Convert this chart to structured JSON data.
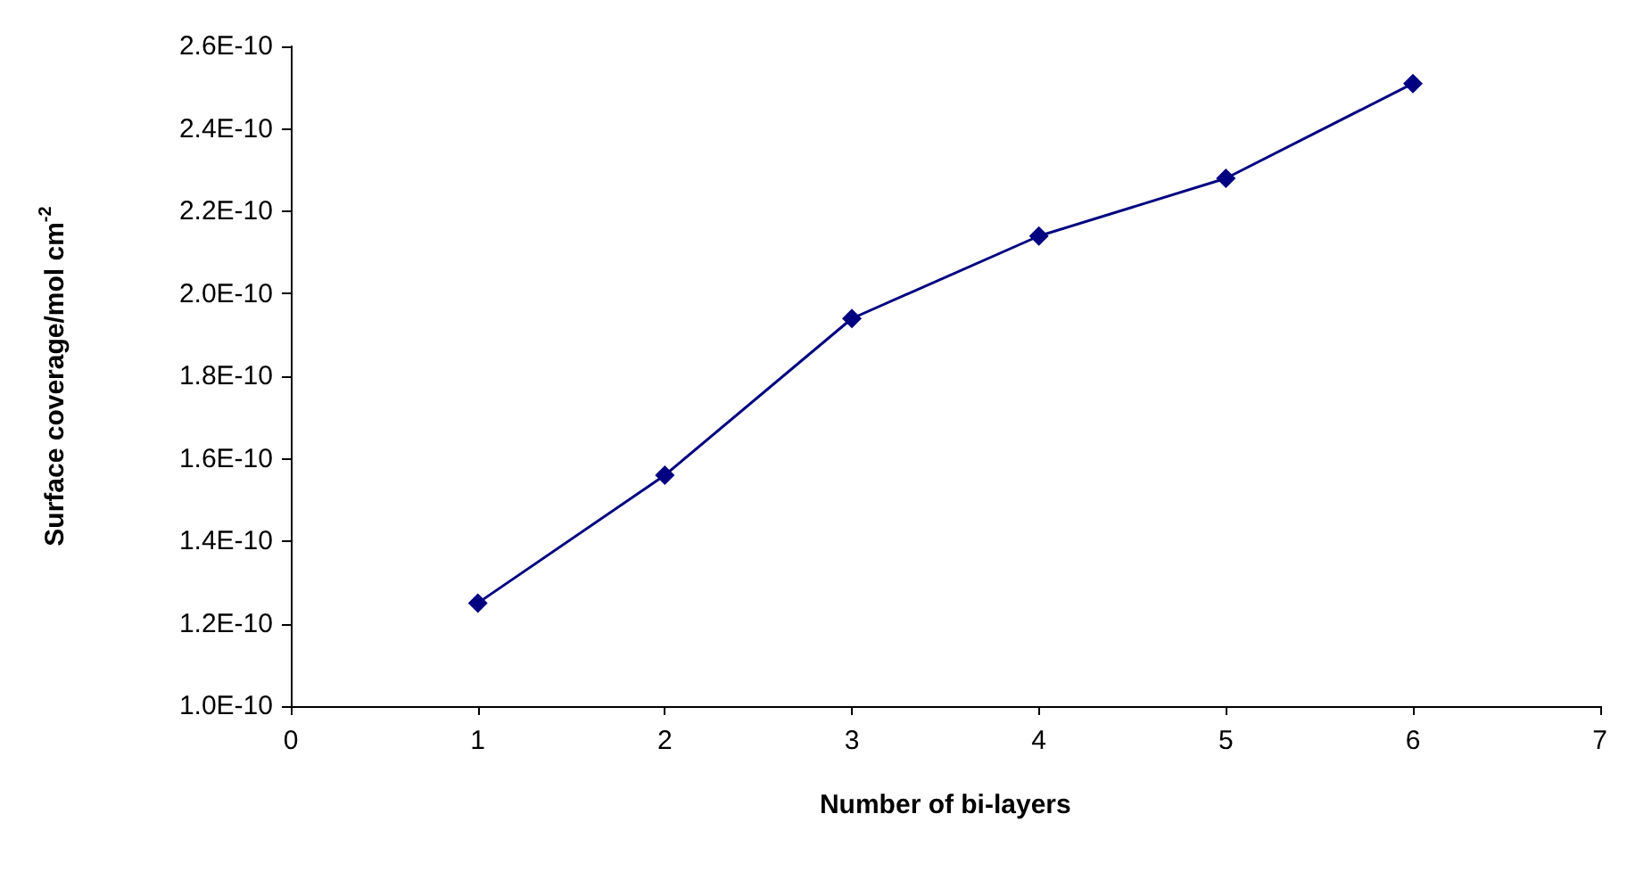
{
  "chart_data": {
    "type": "line",
    "xlabel": "Number of bi-layers",
    "ylabel": "Surface coverage/mol cm$^{-2}$",
    "x": [
      1,
      2,
      3,
      4,
      5,
      6
    ],
    "series": [
      {
        "color": "#000080",
        "values": [
          1.25e-10,
          1.56e-10,
          1.94e-10,
          2.14e-10,
          2.28e-10,
          2.51e-10
        ]
      }
    ],
    "xlim": [
      0,
      7
    ],
    "xticks": [
      0,
      1,
      2,
      3,
      4,
      5,
      6,
      7
    ],
    "ylim": [
      1e-10,
      2.6e-10
    ],
    "yticks": [
      {
        "value": 1e-10,
        "label": "1.0E-10"
      },
      {
        "value": 1.2e-10,
        "label": "1.2E-10"
      },
      {
        "value": 1.4e-10,
        "label": "1.4E-10"
      },
      {
        "value": 1.6e-10,
        "label": "1.6E-10"
      },
      {
        "value": 1.8e-10,
        "label": "1.8E-10"
      },
      {
        "value": 2e-10,
        "label": "2.0E-10"
      },
      {
        "value": 2.2e-10,
        "label": "2.2E-10"
      },
      {
        "value": 2.4e-10,
        "label": "2.4E-10"
      },
      {
        "value": 2.6e-10,
        "label": "2.6E-10"
      }
    ],
    "grid": false,
    "marker": "diamond",
    "line_style": "solid"
  }
}
